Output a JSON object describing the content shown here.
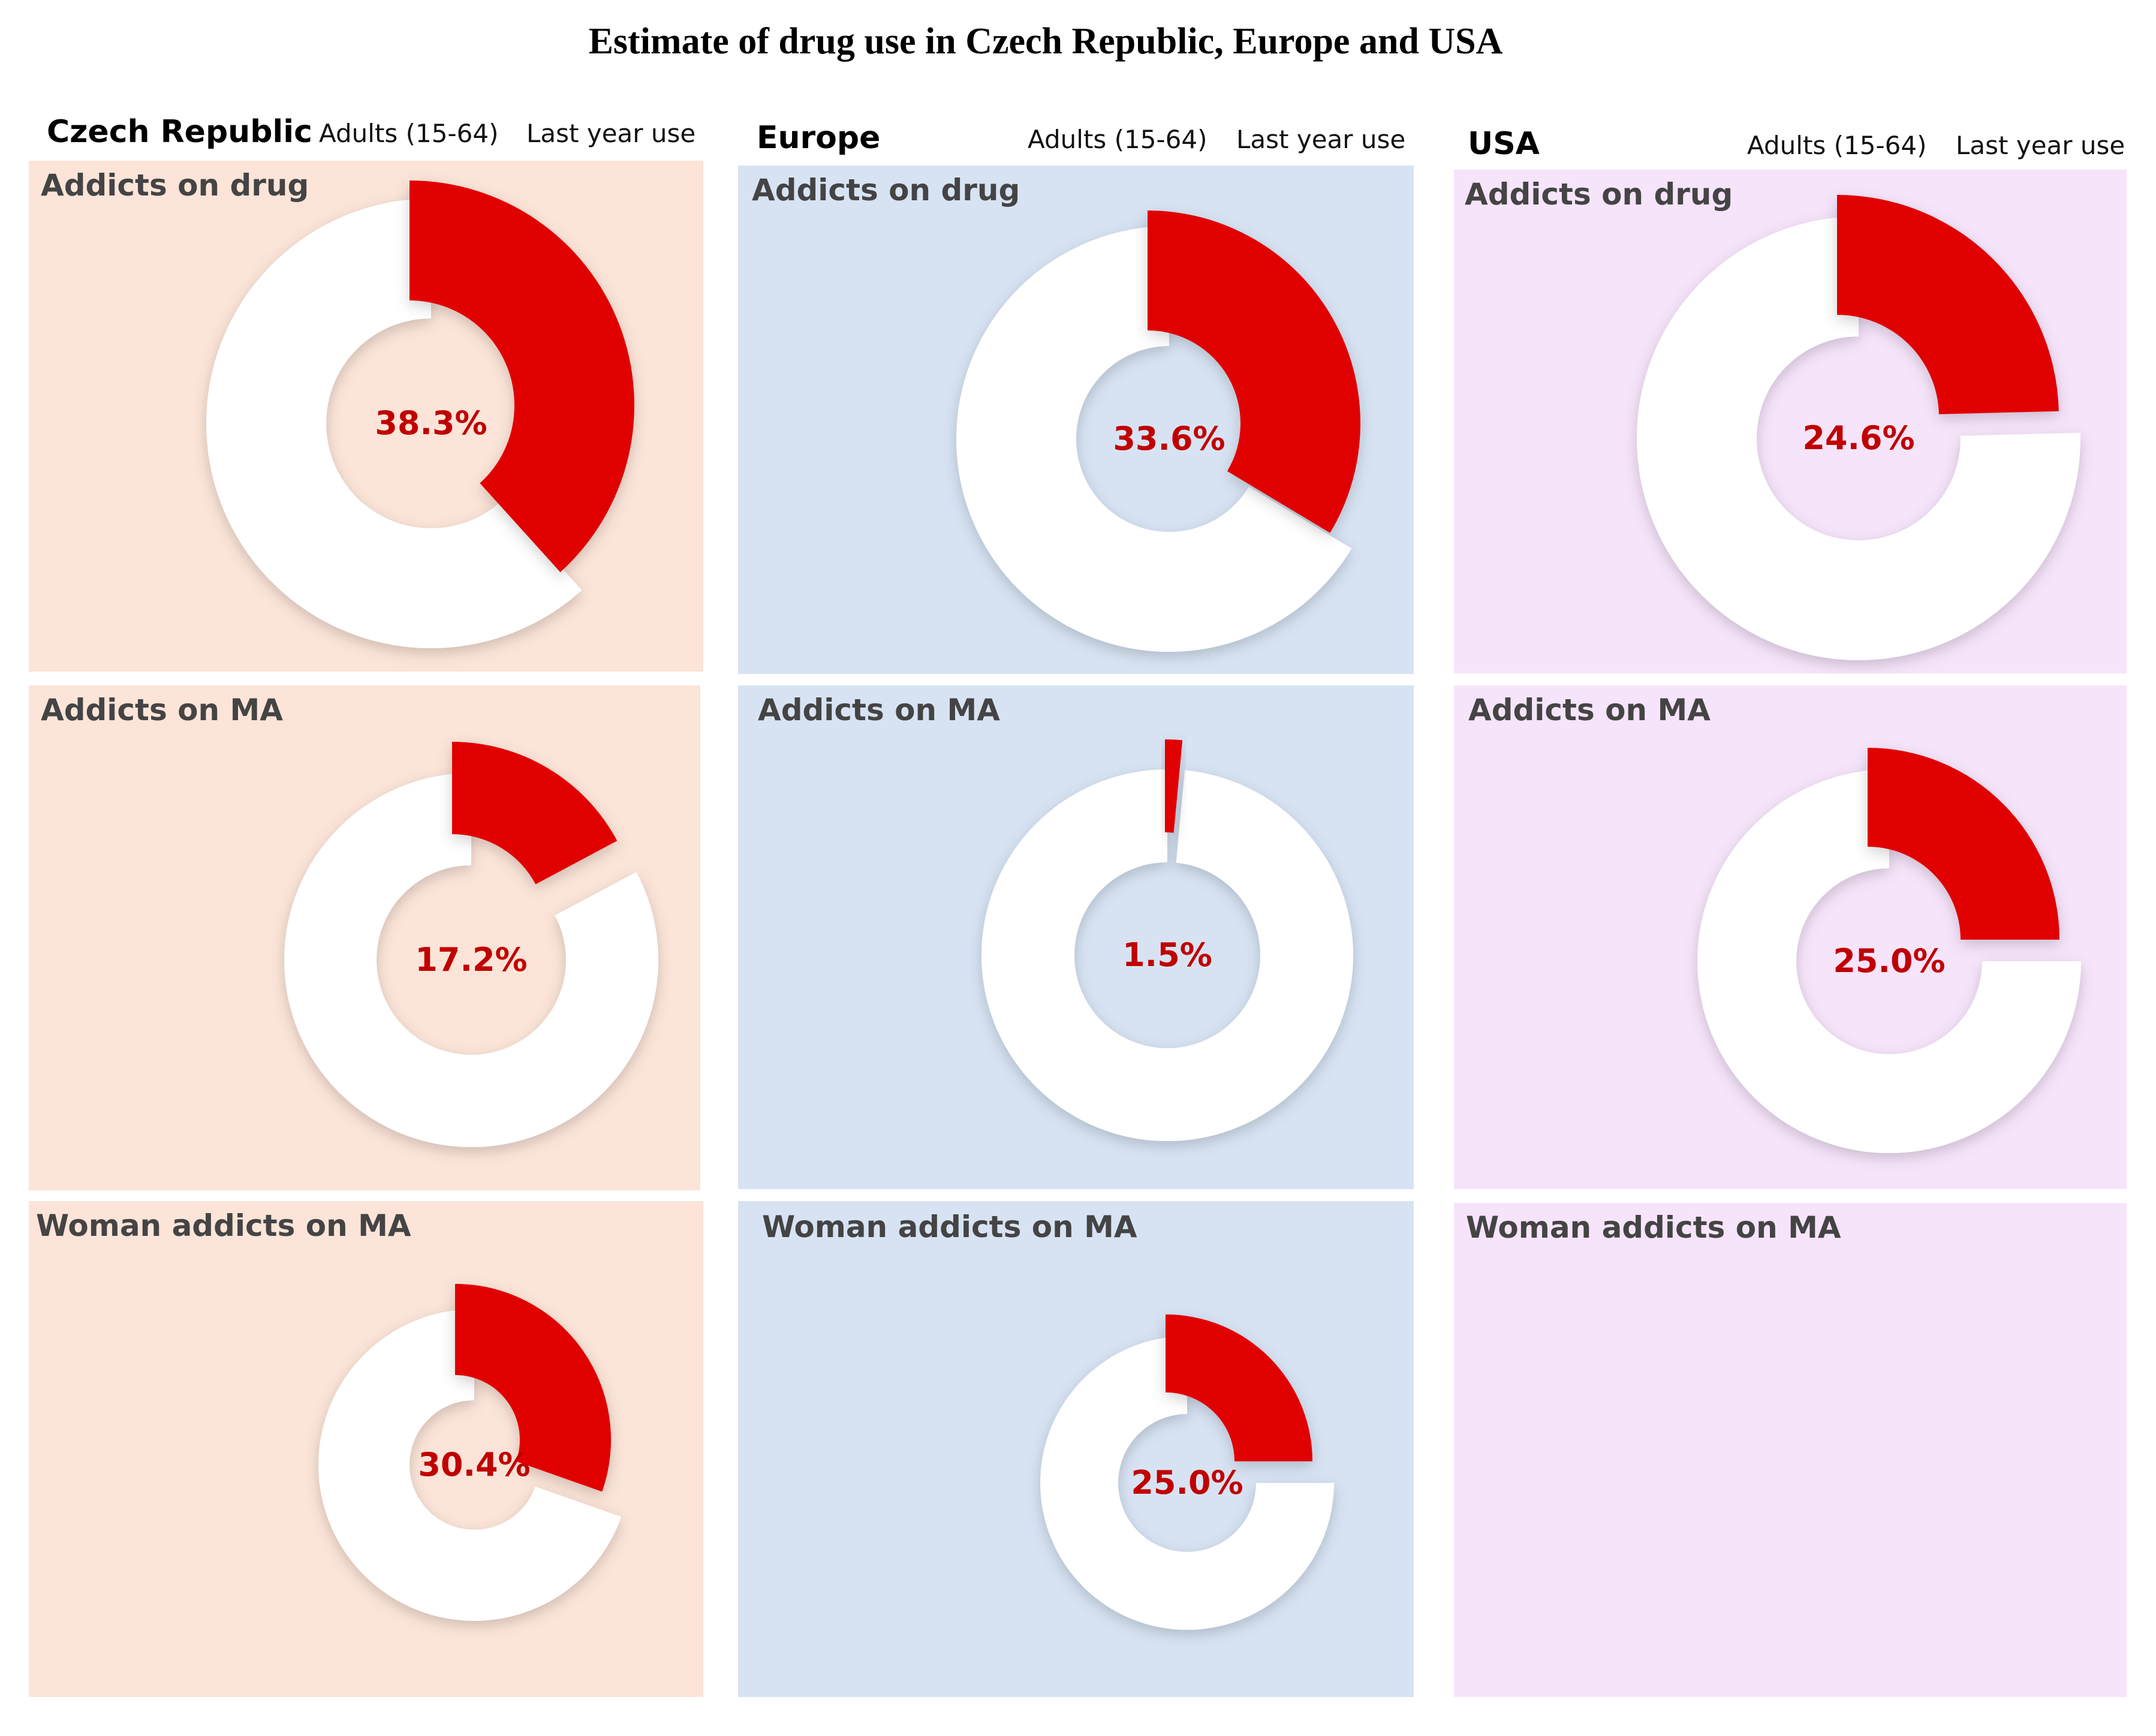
{
  "title": "Estimate of drug use in Czech Republic, Europe and USA",
  "colors": {
    "highlight": "#e00000",
    "label": "#c00000",
    "remainder": "#ffffff",
    "czech_bg": "#fce4d8",
    "europe_bg": "#d7e3f3",
    "usa_bg": "#f6e4fb"
  },
  "columns": [
    {
      "country": "Czech Republic",
      "adults": "Adults (15-64)",
      "period": "Last year use"
    },
    {
      "country": "Europe",
      "adults": "Adults (15-64)",
      "period": "Last year use"
    },
    {
      "country": "USA",
      "adults": "Adults (15-64)",
      "period": "Last year use"
    }
  ],
  "chart_data": [
    {
      "type": "pie",
      "variant": "donut",
      "region": "Czech Republic",
      "title": "Addicts on drug",
      "value": 38.3,
      "label": "38.3%"
    },
    {
      "type": "pie",
      "variant": "donut",
      "region": "Europe",
      "title": "Addicts on drug",
      "value": 33.6,
      "label": "33.6%"
    },
    {
      "type": "pie",
      "variant": "donut",
      "region": "USA",
      "title": "Addicts on drug",
      "value": 24.6,
      "label": "24.6%"
    },
    {
      "type": "pie",
      "variant": "donut",
      "region": "Czech Republic",
      "title": "Addicts on MA",
      "value": 17.2,
      "label": "17.2%"
    },
    {
      "type": "pie",
      "variant": "donut",
      "region": "Europe",
      "title": "Addicts on MA",
      "value": 1.5,
      "label": "1.5%"
    },
    {
      "type": "pie",
      "variant": "donut",
      "region": "USA",
      "title": "Addicts on MA",
      "value": 25.0,
      "label": "25.0%"
    },
    {
      "type": "pie",
      "variant": "donut",
      "region": "Czech Republic",
      "title": "Woman addicts on MA",
      "value": 30.4,
      "label": "30.4%"
    },
    {
      "type": "pie",
      "variant": "donut",
      "region": "Europe",
      "title": "Woman addicts on MA",
      "value": 25.0,
      "label": "25.0%"
    },
    {
      "type": "pie",
      "variant": "donut",
      "region": "USA",
      "title": "Woman addicts on MA",
      "value": null,
      "label": null
    }
  ]
}
